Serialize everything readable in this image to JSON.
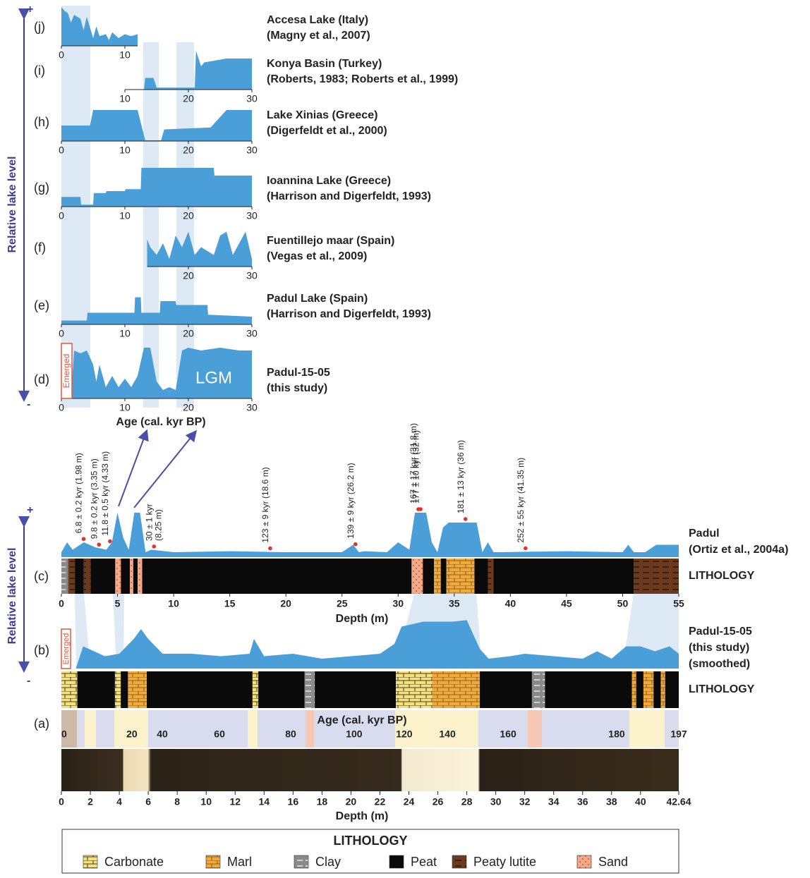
{
  "figure": {
    "ylabel": "Relative lake level",
    "plus": "+",
    "minus": "-"
  },
  "chart_data": [
    {
      "type": "area",
      "label": "(j)",
      "title": [
        "Accesa Lake (Italy)",
        "(Magny et al., 2007)"
      ],
      "color": "#4a9fd8",
      "xlim": [
        0,
        12
      ],
      "xticks": [
        0,
        10
      ],
      "ylim": [
        0,
        1
      ],
      "x": [
        0,
        0.5,
        1,
        1.5,
        2,
        3,
        3.5,
        4,
        5,
        5.5,
        6,
        7,
        7.5,
        8,
        9,
        10,
        11,
        12
      ],
      "values": [
        1,
        0.9,
        0.85,
        0.6,
        0.8,
        0.7,
        0.4,
        0.75,
        0.2,
        0.5,
        0.25,
        0.3,
        0.15,
        0.35,
        0.2,
        0.3,
        0.25,
        0.3
      ]
    },
    {
      "type": "area",
      "label": "(i)",
      "title": [
        "Konya Basin (Turkey)",
        "(Roberts, 1983; Roberts et al., 1999)"
      ],
      "color": "#4a9fd8",
      "xlim": [
        10,
        30
      ],
      "xticks": [
        10,
        20,
        30
      ],
      "ylim": [
        0,
        1
      ],
      "x": [
        10,
        13,
        13.2,
        14.5,
        15,
        19,
        21,
        21.2,
        22,
        22.5,
        26,
        30
      ],
      "values": [
        0,
        0,
        0.3,
        0.3,
        0.05,
        0.05,
        0.05,
        1,
        0.6,
        0.7,
        0.8,
        0.8
      ]
    },
    {
      "type": "area",
      "label": "(h)",
      "title": [
        "Lake Xinias (Greece)",
        "(Digerfeldt et al., 2000)"
      ],
      "color": "#4a9fd8",
      "xlim": [
        0,
        30
      ],
      "xticks": [
        0,
        10,
        20,
        30
      ],
      "ylim": [
        0,
        1
      ],
      "x": [
        0,
        4.5,
        5,
        11.5,
        12,
        13.2,
        15.7,
        16.2,
        23.5,
        26,
        30
      ],
      "values": [
        0.4,
        0.4,
        0.8,
        0.8,
        0.8,
        0.02,
        0.02,
        0.3,
        0.35,
        0.8,
        0.8
      ]
    },
    {
      "type": "area",
      "label": "(g)",
      "title": [
        "Ioannina Lake (Greece)",
        "(Harrison and Digerfeldt, 1993)"
      ],
      "color": "#4a9fd8",
      "xlim": [
        0,
        30
      ],
      "xticks": [
        0,
        10,
        20,
        30
      ],
      "ylim": [
        0,
        1
      ],
      "x": [
        0,
        3,
        3.1,
        5,
        5.1,
        7,
        7.1,
        10,
        10.1,
        12.5,
        12.6,
        24,
        24.1,
        30
      ],
      "values": [
        0.25,
        0.25,
        0.05,
        0.05,
        0.35,
        0.35,
        0.4,
        0.4,
        0.45,
        0.45,
        1,
        1,
        0.8,
        0.8
      ]
    },
    {
      "type": "area",
      "label": "(f)",
      "title": [
        "Fuentillejo maar (Spain)",
        "(Vegas et al., 2009)"
      ],
      "color": "#4a9fd8",
      "xlim": [
        13.5,
        30
      ],
      "xticks": [
        20,
        30
      ],
      "ylim": [
        0,
        1
      ],
      "x": [
        13.5,
        14,
        15,
        16,
        17,
        18,
        19,
        20,
        21,
        22,
        23,
        24,
        25,
        26,
        27,
        28,
        29,
        30
      ],
      "values": [
        0.7,
        0.5,
        0.3,
        0.6,
        0.2,
        0.8,
        0.5,
        0.9,
        0.3,
        0.5,
        0.4,
        0.3,
        0.8,
        0.9,
        0.3,
        0.6,
        0.9,
        0.2
      ]
    },
    {
      "type": "area",
      "label": "(e)",
      "title": [
        "Padul Lake (Spain)",
        "(Harrison and Digerfeldt, 1993)"
      ],
      "color": "#4a9fd8",
      "xlim": [
        0,
        30
      ],
      "xticks": [
        0,
        10,
        20,
        30
      ],
      "ylim": [
        0,
        1
      ],
      "x": [
        0,
        4,
        4.1,
        11.5,
        11.6,
        12.5,
        12.6,
        15.5,
        15.6,
        18,
        18.1,
        23,
        23.1,
        30
      ],
      "values": [
        0.1,
        0.1,
        0.3,
        0.3,
        0.7,
        0.7,
        0.3,
        0.3,
        0.6,
        0.6,
        0.5,
        0.5,
        0.25,
        0.2
      ]
    },
    {
      "type": "area",
      "label": "(d)",
      "title": [
        "Padul-15-05",
        "(this study)"
      ],
      "color": "#4a9fd8",
      "xlim": [
        0,
        30
      ],
      "xticks": [
        0,
        10,
        20,
        30
      ],
      "ylim": [
        0,
        1
      ],
      "xlabel": "Age (cal. kyr BP)",
      "annotation": "LGM",
      "emerged": "Emerged",
      "x": [
        0,
        1.5,
        2,
        3,
        4,
        5,
        5.5,
        6,
        7,
        8,
        9,
        10,
        11,
        12,
        13,
        14,
        15,
        16,
        17,
        18,
        19,
        20,
        22,
        25,
        28,
        30
      ],
      "values": [
        0,
        0,
        0.85,
        0.8,
        0.85,
        0.6,
        0.3,
        0.6,
        0.2,
        0.4,
        0.2,
        0.35,
        0.2,
        0.4,
        0.9,
        0.9,
        0.3,
        0.15,
        0.2,
        0.15,
        0.85,
        0.9,
        0.85,
        0.9,
        0.85,
        0.85
      ]
    },
    {
      "type": "area",
      "label": "(c)",
      "title": [
        "Padul",
        "(Ortiz et al., 2004a)"
      ],
      "color": "#4a9fd8",
      "xlim": [
        0,
        55
      ],
      "xticks": [
        0,
        5,
        10,
        15,
        20,
        25,
        30,
        35,
        40,
        45,
        50,
        55
      ],
      "ylim": [
        0,
        1
      ],
      "xlabel": "Depth (m)",
      "lithology_label": "LITHOLOGY",
      "x": [
        0,
        0.5,
        1,
        2,
        3,
        4,
        4.5,
        5,
        5.5,
        6,
        6.5,
        7,
        7.5,
        8,
        10,
        15,
        20,
        25,
        26,
        26.5,
        27,
        29,
        30,
        31,
        31.5,
        32.5,
        33,
        33.5,
        34,
        34.5,
        37,
        37.5,
        38,
        38.5,
        39,
        45,
        50,
        50.5,
        51,
        52,
        53,
        55
      ],
      "values": [
        0.1,
        0.3,
        0.15,
        0.3,
        0.2,
        0.15,
        0.3,
        0.9,
        0.4,
        0.15,
        0.9,
        0.9,
        0.1,
        0.15,
        0.1,
        0.12,
        0.1,
        0.1,
        0.25,
        0.1,
        0.12,
        0.1,
        0.3,
        0.15,
        0.9,
        0.9,
        0.3,
        0.1,
        0.6,
        0.7,
        0.7,
        0.1,
        0.3,
        0.1,
        0.1,
        0.12,
        0.1,
        0.25,
        0.1,
        0.1,
        0.25,
        0.25
      ],
      "dates": [
        {
          "text": [
            "6.8 ± 0.2 kyr (1.98 m)"
          ],
          "depth": 1.98
        },
        {
          "text": [
            "9.8 ± 0.2 kyr (3.35 m)"
          ],
          "depth": 3.35
        },
        {
          "text": [
            "11.8 ± 0.5 kyr (4.33 m)"
          ],
          "depth": 4.33
        },
        {
          "text": [
            "30 ± 1 kyr",
            "(8.25 m)"
          ],
          "depth": 8.25
        },
        {
          "text": [
            "123 ± 9 kyr (18.6 m)"
          ],
          "depth": 18.6
        },
        {
          "text": [
            "139 ± 9 kyr (26.2 m)"
          ],
          "depth": 26.2
        },
        {
          "text": [
            "167 ± 17 kyr (31.8 m)"
          ],
          "depth": 31.8
        },
        {
          "text": [
            "177 ± 10 kyr (32 m)"
          ],
          "depth": 32
        },
        {
          "text": [
            "181 ± 13 kyr (36 m)"
          ],
          "depth": 36
        },
        {
          "text": [
            "252 ± 55 kyr (41.35 m)"
          ],
          "depth": 41.35
        }
      ],
      "lithology": [
        {
          "from": 0,
          "to": 0.6,
          "type": "Clay"
        },
        {
          "from": 0.6,
          "to": 1.2,
          "type": "Peaty lutite"
        },
        {
          "from": 1.2,
          "to": 2,
          "type": "Peat"
        },
        {
          "from": 2,
          "to": 2.6,
          "type": "Peaty lutite"
        },
        {
          "from": 2.6,
          "to": 4.8,
          "type": "Peat"
        },
        {
          "from": 4.8,
          "to": 5.3,
          "type": "Sand"
        },
        {
          "from": 5.3,
          "to": 6.1,
          "type": "Peat"
        },
        {
          "from": 6.1,
          "to": 6.4,
          "type": "Sand"
        },
        {
          "from": 6.4,
          "to": 6.8,
          "type": "Peat"
        },
        {
          "from": 6.8,
          "to": 7.2,
          "type": "Sand"
        },
        {
          "from": 7.2,
          "to": 31.2,
          "type": "Peat"
        },
        {
          "from": 31.2,
          "to": 32.2,
          "type": "Sand"
        },
        {
          "from": 32.2,
          "to": 33.2,
          "type": "Peat"
        },
        {
          "from": 33.2,
          "to": 33.8,
          "type": "Marl"
        },
        {
          "from": 33.8,
          "to": 34.3,
          "type": "Peat"
        },
        {
          "from": 34.3,
          "to": 36.8,
          "type": "Marl"
        },
        {
          "from": 36.8,
          "to": 38,
          "type": "Peat"
        },
        {
          "from": 38,
          "to": 38.5,
          "type": "Peaty lutite"
        },
        {
          "from": 38.5,
          "to": 51,
          "type": "Peat"
        },
        {
          "from": 51,
          "to": 55,
          "type": "Peaty lutite"
        }
      ]
    },
    {
      "type": "area",
      "label": "(b)",
      "title": [
        "Padul-15-05",
        "(this study)",
        "(smoothed)"
      ],
      "color": "#4a9fd8",
      "xlim": [
        0,
        42.64
      ],
      "ylim": [
        0,
        1
      ],
      "emerged": "Emerged",
      "lithology_label": "LITHOLOGY",
      "x": [
        0,
        1,
        1.5,
        3,
        4,
        4.5,
        5,
        5.5,
        6,
        7,
        9,
        11,
        13,
        13.3,
        14,
        16,
        18,
        20,
        22,
        23,
        23.5,
        25,
        27,
        28,
        28.9,
        29.5,
        31,
        32,
        34,
        36,
        37,
        38,
        39,
        40,
        41,
        42,
        42.64
      ],
      "values": [
        0,
        0,
        0.45,
        0.25,
        0.3,
        0.45,
        0.6,
        0.8,
        0.6,
        0.3,
        0.3,
        0.25,
        0.3,
        0.6,
        0.25,
        0.3,
        0.2,
        0.25,
        0.3,
        0.5,
        0.85,
        0.95,
        0.95,
        0.98,
        0.4,
        0.2,
        0.25,
        0.3,
        0.25,
        0.2,
        0.35,
        0.2,
        0.45,
        0.45,
        0.35,
        0.45,
        0.3
      ],
      "lithology": [
        {
          "from": 0,
          "to": 1.1,
          "type": "Carbonate"
        },
        {
          "from": 1.1,
          "to": 3.7,
          "type": "Peat"
        },
        {
          "from": 3.7,
          "to": 4.1,
          "type": "Carbonate"
        },
        {
          "from": 4.1,
          "to": 4.6,
          "type": "Peat"
        },
        {
          "from": 4.6,
          "to": 5.9,
          "type": "Marl"
        },
        {
          "from": 5.9,
          "to": 13.2,
          "type": "Peat"
        },
        {
          "from": 13.2,
          "to": 13.6,
          "type": "Carbonate"
        },
        {
          "from": 13.6,
          "to": 16.8,
          "type": "Peat"
        },
        {
          "from": 16.8,
          "to": 17.5,
          "type": "Clay"
        },
        {
          "from": 17.5,
          "to": 23.1,
          "type": "Peat"
        },
        {
          "from": 23.1,
          "to": 25.6,
          "type": "Carbonate"
        },
        {
          "from": 25.6,
          "to": 28.9,
          "type": "Marl"
        },
        {
          "from": 28.9,
          "to": 32.5,
          "type": "Peat"
        },
        {
          "from": 32.5,
          "to": 33.4,
          "type": "Clay"
        },
        {
          "from": 33.4,
          "to": 39.4,
          "type": "Peat"
        },
        {
          "from": 39.4,
          "to": 39.7,
          "type": "Marl"
        },
        {
          "from": 39.7,
          "to": 40.2,
          "type": "Peat"
        },
        {
          "from": 40.2,
          "to": 40.9,
          "type": "Marl"
        },
        {
          "from": 40.9,
          "to": 41.4,
          "type": "Peat"
        },
        {
          "from": 41.4,
          "to": 41.7,
          "type": "Marl"
        },
        {
          "from": 41.7,
          "to": 42.64,
          "type": "Peat"
        }
      ]
    },
    {
      "type": "core",
      "label": "(a)",
      "age_label": "Age (cal. kyr BP)",
      "xlim": [
        0,
        42.64
      ],
      "xlabel": "Depth (m)",
      "xticks": [
        0,
        2,
        4,
        6,
        8,
        10,
        12,
        14,
        16,
        18,
        20,
        22,
        24,
        26,
        28,
        30,
        32,
        34,
        36,
        38,
        40,
        42.64
      ],
      "age_ticks": [
        {
          "age": 0,
          "depth": 0
        },
        {
          "age": 20,
          "depth": 4.87
        },
        {
          "age": 40,
          "depth": 6.97
        },
        {
          "age": 60,
          "depth": 10.92
        },
        {
          "age": 80,
          "depth": 15.84
        },
        {
          "age": 100,
          "depth": 20.22
        },
        {
          "age": 120,
          "depth": 23.68
        },
        {
          "age": 140,
          "depth": 26.66
        },
        {
          "age": 160,
          "depth": 30.85
        },
        {
          "age": 180,
          "depth": 38.35
        },
        {
          "age": 197,
          "depth": 42.64
        }
      ]
    }
  ],
  "legend": {
    "title": "LITHOLOGY",
    "items": [
      {
        "name": "Carbonate",
        "color": "#f6e07a"
      },
      {
        "name": "Marl",
        "color": "#f2a93b"
      },
      {
        "name": "Clay",
        "color": "#8a8a8a"
      },
      {
        "name": "Peat",
        "color": "#0a0a0a"
      },
      {
        "name": "Peaty lutite",
        "color": "#6a3b1e"
      },
      {
        "name": "Sand",
        "color": "#f4a888"
      }
    ]
  }
}
